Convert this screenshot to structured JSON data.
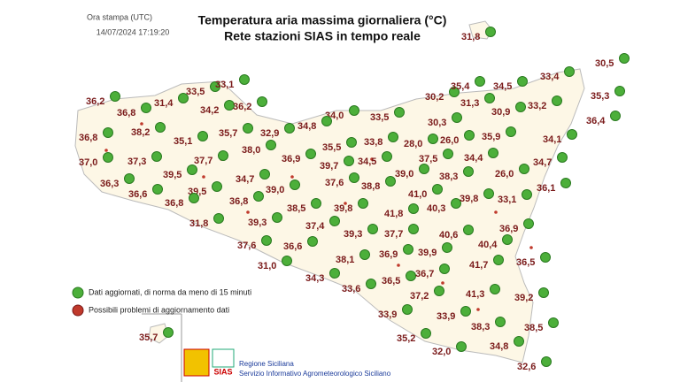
{
  "header": {
    "print_time_label": "Ora stampa (UTC)",
    "print_time": "14/07/2024 17:19:20",
    "title": "Temperatura aria massima giornaliera (°C)",
    "subtitle": "Rete stazioni SIAS in tempo reale"
  },
  "stations": [
    "31,8",
    "30,5",
    "33,5",
    "33,1",
    "36,2",
    "31,4",
    "34,2",
    "36,2",
    "36,8",
    "30,2",
    "35,4",
    "34,5",
    "33,4",
    "35,3",
    "31,3",
    "30,9",
    "33,2",
    "36,4",
    "34,0",
    "33,5",
    "34,8",
    "38,2",
    "35,7",
    "32,9",
    "30,3",
    "28,0",
    "26,0",
    "35,9",
    "34,1",
    "36,8",
    "35,1",
    "38,0",
    "35,5",
    "33,8",
    "37,0",
    "37,3",
    "37,7",
    "36,9",
    "39,7",
    "34,5",
    "37,5",
    "34,4",
    "34,7",
    "26,0",
    "39,5",
    "34,7",
    "37,6",
    "39,0",
    "38,3",
    "36,3",
    "36,6",
    "39,5",
    "39,0",
    "38,8",
    "41,0",
    "36,1",
    "36,8",
    "36,8",
    "38,5",
    "39,8",
    "40,3",
    "39,8",
    "33,1",
    "41,8",
    "31,8",
    "39,3",
    "37,4",
    "39,3",
    "37,7",
    "40,6",
    "36,9",
    "40,4",
    "37,6",
    "36,6",
    "39,9",
    "41,7",
    "36,5",
    "38,1",
    "36,9",
    "31,0",
    "34,3",
    "36,5",
    "36,7",
    "33,6",
    "37,2",
    "41,3",
    "39,2",
    "33,9",
    "33,9",
    "38,3",
    "38,5",
    "35,2",
    "34,8",
    "32,0",
    "35,7",
    "32,6"
  ],
  "legend": {
    "ok": "Dati aggiornati, di norma da meno di 15 minuti",
    "problem": "Possibili problemi di aggiornamento dati"
  },
  "footer": {
    "logo": "SIAS",
    "region": "Regione Siciliana",
    "service": "Servizio Informativo Agrometeorologico Siciliano"
  }
}
